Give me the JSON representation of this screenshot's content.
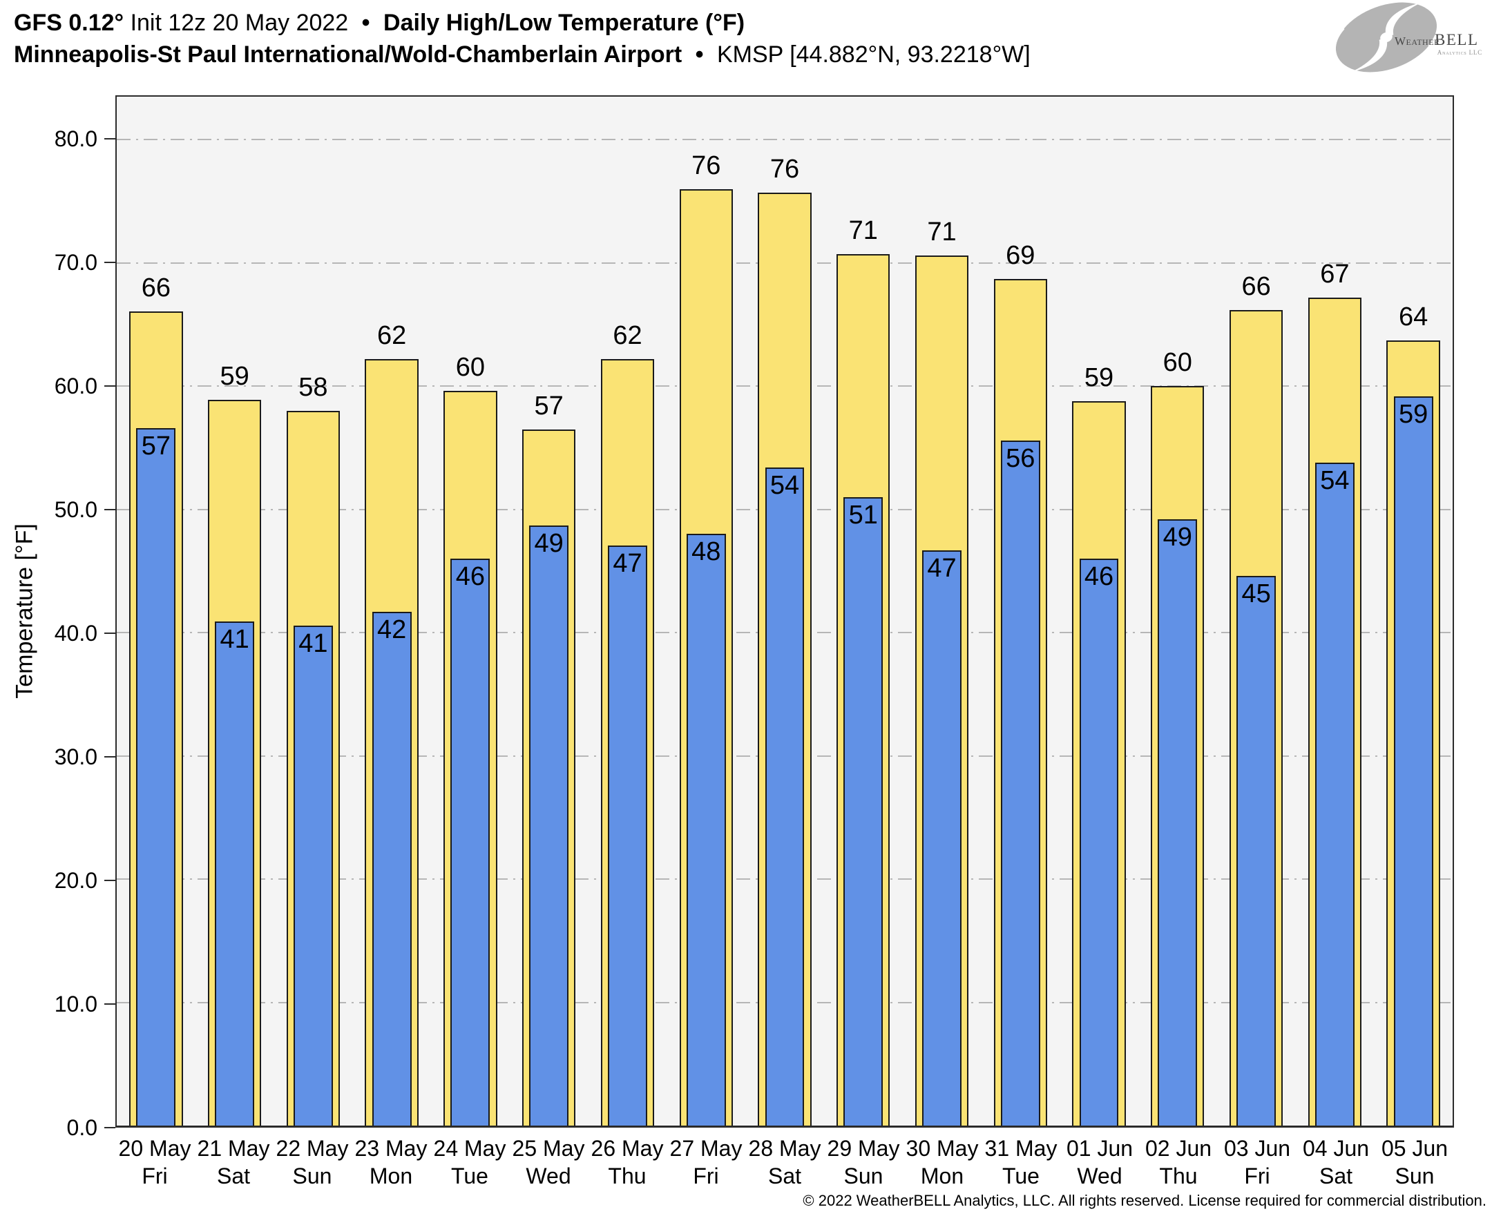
{
  "header": {
    "model": "GFS 0.12°",
    "init": "Init 12z 20 May 2022",
    "bullet": "•",
    "product": "Daily High/Low Temperature (°F)",
    "station_name": "Minneapolis-St Paul International/Wold-Chamberlain Airport",
    "station_id": "KMSP [44.882°N, 93.2218°W]"
  },
  "logo": {
    "weather": "Weather",
    "bell": "BELL",
    "tagline": "Analytics LLC"
  },
  "chart_data": {
    "type": "bar",
    "title": "GFS 0.12° Init 12z 20 May 2022 • Daily High/Low Temperature (°F) • Minneapolis-St Paul International/Wold-Chamberlain Airport • KMSP",
    "ylabel": "Temperature [°F]",
    "xlabel": "",
    "ylim": [
      0,
      83.5
    ],
    "yticks": [
      80,
      70,
      60,
      50,
      40,
      30,
      20,
      10,
      0
    ],
    "ytick_format": "one-decimal",
    "grid": "horizontal dash-dot",
    "legend_position": "none",
    "categories": [
      {
        "date": "20 May",
        "day": "Fri"
      },
      {
        "date": "21 May",
        "day": "Sat"
      },
      {
        "date": "22 May",
        "day": "Sun"
      },
      {
        "date": "23 May",
        "day": "Mon"
      },
      {
        "date": "24 May",
        "day": "Tue"
      },
      {
        "date": "25 May",
        "day": "Wed"
      },
      {
        "date": "26 May",
        "day": "Thu"
      },
      {
        "date": "27 May",
        "day": "Fri"
      },
      {
        "date": "28 May",
        "day": "Sat"
      },
      {
        "date": "29 May",
        "day": "Sun"
      },
      {
        "date": "30 May",
        "day": "Mon"
      },
      {
        "date": "31 May",
        "day": "Tue"
      },
      {
        "date": "01 Jun",
        "day": "Wed"
      },
      {
        "date": "02 Jun",
        "day": "Thu"
      },
      {
        "date": "03 Jun",
        "day": "Fri"
      },
      {
        "date": "04 Jun",
        "day": "Sat"
      },
      {
        "date": "05 Jun",
        "day": "Sun"
      }
    ],
    "series": [
      {
        "name": "Daily High",
        "color": "#FAE374",
        "edge": "#1A1A1A",
        "labels": [
          66,
          59,
          58,
          62,
          60,
          57,
          62,
          76,
          76,
          71,
          71,
          69,
          59,
          60,
          66,
          67,
          64
        ],
        "values": [
          66.1,
          58.9,
          58.0,
          62.2,
          59.6,
          56.5,
          62.2,
          76.0,
          75.7,
          70.7,
          70.6,
          68.7,
          58.8,
          60.0,
          66.2,
          67.2,
          63.7
        ]
      },
      {
        "name": "Daily Low",
        "color": "#6191E6",
        "edge": "#1A1A1A",
        "labels": [
          57,
          41,
          41,
          42,
          46,
          49,
          47,
          48,
          54,
          51,
          47,
          56,
          46,
          49,
          45,
          54,
          59
        ],
        "values": [
          56.6,
          40.9,
          40.6,
          41.7,
          46.0,
          48.7,
          47.1,
          48.0,
          53.4,
          51.0,
          46.7,
          55.6,
          46.0,
          49.2,
          44.6,
          53.8,
          59.2
        ]
      }
    ],
    "colors": {
      "plot_bg": "#F4F4F4",
      "grid": "#B6B6B6",
      "axis_frame": "#2B2B2B",
      "label_text": "#000000"
    }
  },
  "footer": {
    "copyright": "© 2022 WeatherBELL Analytics, LLC. All rights reserved. License required for commercial distribution."
  }
}
